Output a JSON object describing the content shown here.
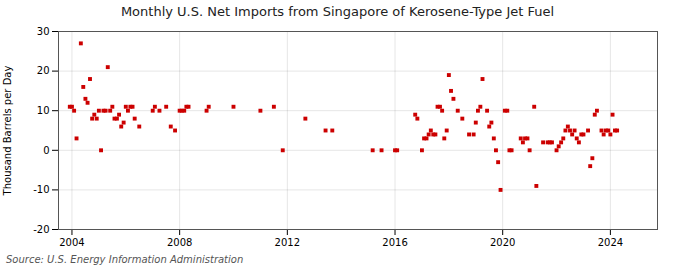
{
  "chart_data": {
    "type": "scatter",
    "title": "Monthly U.S. Net Imports from Singapore of Kerosene-Type Jet Fuel",
    "ylabel": "Thousand Barrels per Day",
    "caption": "Source: U.S. Energy Information Administration",
    "color": "#cc0000",
    "marker": "square",
    "grid": true,
    "xlim": [
      2003.5,
      2025.75
    ],
    "ylim": [
      -20,
      30
    ],
    "xticks": [
      2004,
      2008,
      2012,
      2016,
      2020,
      2024
    ],
    "yticks": [
      -20,
      -10,
      0,
      10,
      20,
      30
    ],
    "x": [
      2003.92,
      2004.0,
      2004.08,
      2004.17,
      2004.33,
      2004.42,
      2004.5,
      2004.58,
      2004.67,
      2004.75,
      2004.83,
      2004.92,
      2005.0,
      2005.08,
      2005.17,
      2005.25,
      2005.33,
      2005.42,
      2005.5,
      2005.58,
      2005.67,
      2005.75,
      2005.83,
      2005.92,
      2006.0,
      2006.08,
      2006.17,
      2006.25,
      2006.33,
      2006.5,
      2007.0,
      2007.08,
      2007.25,
      2007.5,
      2007.67,
      2007.83,
      2008.0,
      2008.08,
      2008.17,
      2008.25,
      2008.33,
      2009.0,
      2009.08,
      2010.0,
      2011.0,
      2011.5,
      2011.83,
      2012.67,
      2013.42,
      2013.67,
      2015.17,
      2015.5,
      2016.0,
      2016.08,
      2016.75,
      2016.83,
      2017.0,
      2017.08,
      2017.17,
      2017.25,
      2017.33,
      2017.42,
      2017.5,
      2017.58,
      2017.67,
      2017.75,
      2017.83,
      2017.92,
      2018.0,
      2018.08,
      2018.17,
      2018.33,
      2018.5,
      2018.75,
      2018.92,
      2019.0,
      2019.08,
      2019.17,
      2019.25,
      2019.42,
      2019.5,
      2019.58,
      2019.67,
      2019.75,
      2019.83,
      2019.92,
      2020.08,
      2020.17,
      2020.25,
      2020.33,
      2020.67,
      2020.75,
      2020.83,
      2020.92,
      2021.0,
      2021.17,
      2021.25,
      2021.5,
      2021.67,
      2021.75,
      2021.83,
      2022.0,
      2022.08,
      2022.17,
      2022.25,
      2022.33,
      2022.42,
      2022.5,
      2022.58,
      2022.67,
      2022.75,
      2022.83,
      2022.92,
      2023.0,
      2023.17,
      2023.25,
      2023.33,
      2023.42,
      2023.5,
      2023.67,
      2023.75,
      2023.83,
      2023.92,
      2024.0,
      2024.08,
      2024.17,
      2024.25
    ],
    "values": [
      11,
      11,
      10,
      3,
      27,
      16,
      13,
      12,
      18,
      8,
      9,
      8,
      10,
      0,
      10,
      10,
      21,
      10,
      11,
      8,
      8,
      9,
      6,
      7,
      11,
      10,
      11,
      11,
      8,
      6,
      10,
      11,
      10,
      11,
      6,
      5,
      10,
      10,
      10,
      11,
      11,
      10,
      11,
      11,
      10,
      11,
      0,
      8,
      5,
      5,
      0,
      0,
      0,
      0,
      9,
      8,
      0,
      3,
      3,
      4,
      5,
      4,
      4,
      11,
      11,
      10,
      3,
      5,
      19,
      15,
      13,
      10,
      8,
      4,
      4,
      7,
      10,
      11,
      18,
      10,
      6,
      7,
      3,
      0,
      -3,
      -10,
      10,
      10,
      0,
      0,
      3,
      2,
      3,
      3,
      0,
      11,
      -9,
      2,
      2,
      2,
      2,
      0,
      1,
      2,
      3,
      5,
      6,
      5,
      4,
      5,
      3,
      2,
      4,
      4,
      5,
      -4,
      -2,
      9,
      10,
      5,
      4,
      5,
      5,
      4,
      9,
      5,
      5
    ]
  }
}
